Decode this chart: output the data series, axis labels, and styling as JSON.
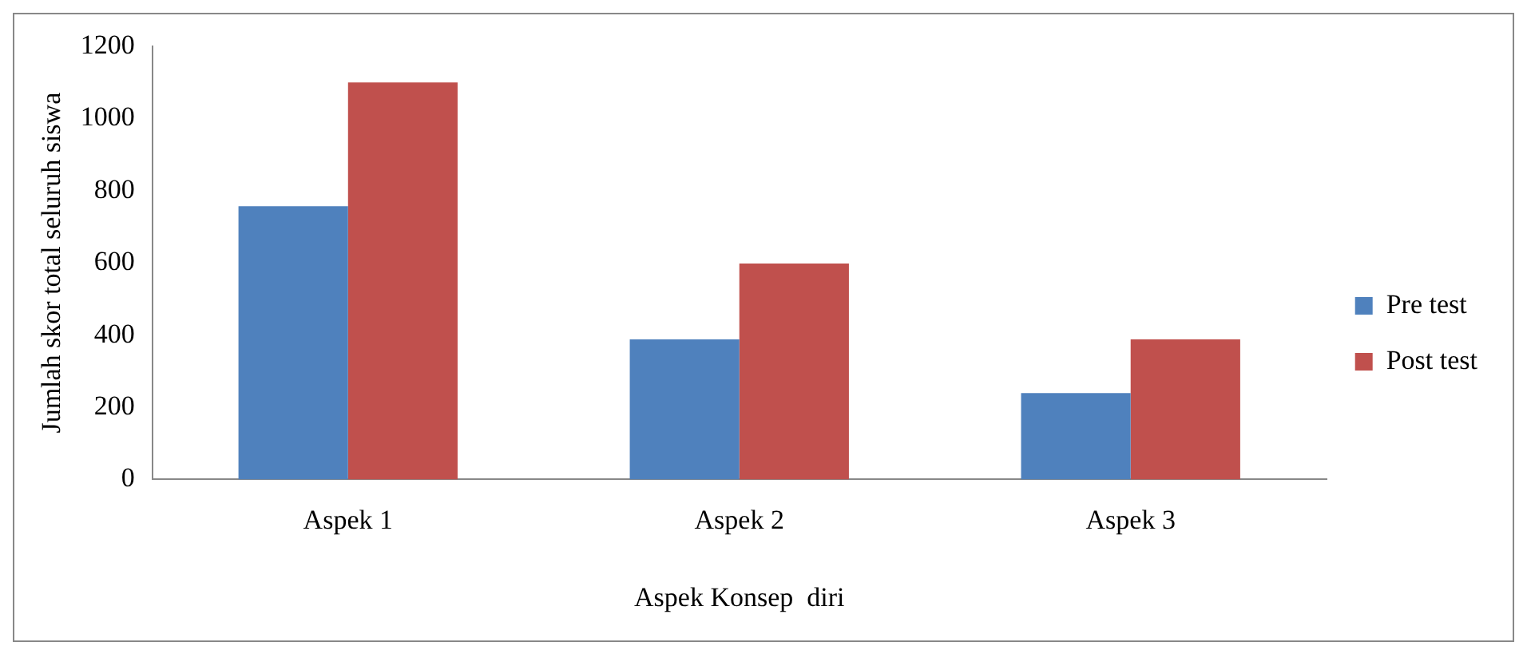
{
  "chart_data": {
    "type": "bar",
    "xlabel": "Aspek Konsep  diri",
    "ylabel": "Jumlah skor total seluruh siswa",
    "categories": [
      "Aspek 1",
      "Aspek 2",
      "Aspek 3"
    ],
    "series": [
      {
        "name": "Pre test",
        "color": "#4f81bd",
        "values": [
          757,
          388,
          239
        ]
      },
      {
        "name": "Post test",
        "color": "#c0504d",
        "values": [
          1100,
          598,
          388
        ]
      }
    ],
    "ylim": [
      0,
      1200
    ],
    "yticks": [
      0,
      200,
      400,
      600,
      800,
      1000,
      1200
    ],
    "grid": false,
    "legend": "right"
  }
}
